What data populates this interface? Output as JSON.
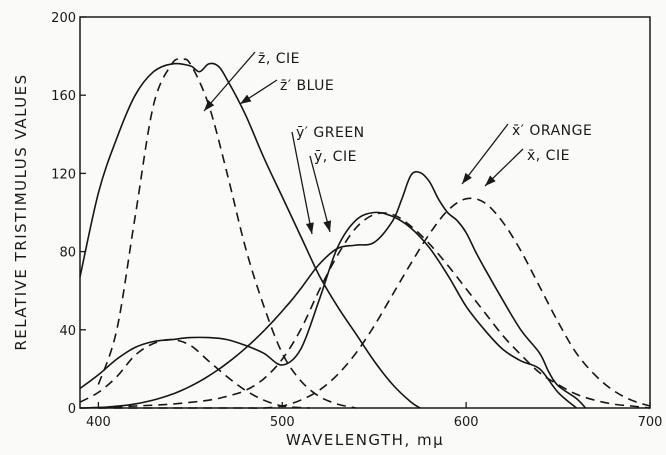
{
  "chart_data": {
    "type": "line",
    "title": "",
    "xlabel": "WAVELENGTH, mμ",
    "ylabel": "RELATIVE TRISTIMULUS VALUES",
    "xlim": [
      390,
      700
    ],
    "ylim": [
      0,
      200
    ],
    "xticks": [
      "400",
      "500",
      "600",
      "700"
    ],
    "yticks": [
      "0",
      "40",
      "80",
      "120",
      "160",
      "200"
    ],
    "grid": false,
    "legend": "none",
    "series": [
      {
        "name": "z̄, CIE",
        "style": "dashed",
        "x": [
          400,
          410,
          420,
          430,
          440,
          445,
          450,
          460,
          470,
          480,
          490,
          500,
          510,
          520,
          530,
          540
        ],
        "y": [
          12,
          40,
          98,
          155,
          176,
          178,
          176,
          155,
          120,
          82,
          52,
          28,
          14,
          6,
          2,
          0
        ]
      },
      {
        "name": "z̄′ BLUE",
        "style": "solid",
        "x": [
          390,
          400,
          410,
          420,
          430,
          440,
          450,
          455,
          460,
          465,
          470,
          480,
          490,
          500,
          510,
          520,
          530,
          540,
          550,
          560,
          570,
          575
        ],
        "y": [
          67,
          110,
          138,
          160,
          172,
          176,
          175,
          172,
          176,
          175,
          168,
          150,
          128,
          108,
          88,
          68,
          52,
          38,
          24,
          12,
          3,
          0
        ]
      },
      {
        "name": "ȳ′ GREEN",
        "style": "solid",
        "x": [
          390,
          400,
          410,
          420,
          430,
          440,
          450,
          460,
          470,
          480,
          490,
          500,
          510,
          520,
          530,
          540,
          550,
          560,
          570,
          580,
          590,
          600,
          610,
          620,
          630,
          640,
          650,
          660
        ],
        "y": [
          10,
          17,
          25,
          31,
          34,
          35,
          36,
          36,
          35,
          32,
          28,
          22,
          30,
          55,
          82,
          96,
          100,
          98,
          92,
          82,
          68,
          52,
          40,
          30,
          24,
          20,
          8,
          0
        ]
      },
      {
        "name": "ȳ, CIE",
        "style": "dashed",
        "x": [
          400,
          420,
          440,
          460,
          470,
          480,
          490,
          500,
          510,
          520,
          530,
          540,
          550,
          560,
          570,
          580,
          590,
          600,
          610,
          620,
          630,
          640,
          650,
          660,
          670,
          680,
          690,
          700
        ],
        "y": [
          0,
          1,
          2,
          4,
          6,
          9,
          15,
          25,
          40,
          60,
          78,
          92,
          99,
          99,
          93,
          84,
          73,
          61,
          49,
          37,
          27,
          18,
          12,
          7,
          4,
          2,
          1,
          0
        ]
      },
      {
        "name": "x̄′ ORANGE",
        "style": "solid",
        "x": [
          385,
          390,
          395,
          400,
          405,
          410,
          415,
          420,
          425,
          430,
          435,
          440,
          445,
          450,
          455,
          460,
          465,
          470,
          475,
          480,
          485,
          490,
          495,
          500,
          505,
          510,
          520,
          530,
          540,
          550,
          560,
          565,
          570,
          575,
          580,
          585,
          590,
          595,
          600,
          605,
          610,
          620,
          630,
          640,
          645,
          650,
          660,
          665
        ],
        "y": [
          0,
          0,
          0.1,
          0.3,
          0.5,
          0.9,
          1.4,
          2.1,
          3.0,
          4.1,
          5.4,
          7.0,
          8.9,
          11.1,
          13.6,
          16.4,
          19.5,
          22.9,
          26.6,
          30.6,
          34.9,
          39.5,
          44.4,
          49.6,
          55.1,
          60.9,
          73.4,
          81.6,
          83.3,
          84.7,
          95.7,
          106.8,
          119.1,
          120.4,
          115.8,
          106.8,
          99.9,
          96.0,
          89.7,
          80.2,
          71.5,
          55.1,
          39.6,
          28.0,
          18.3,
          11.4,
          4.8,
          0
        ]
      },
      {
        "name": "x̄, CIE",
        "style": "dashed",
        "x": [
          400,
          420,
          440,
          460,
          480,
          490,
          500,
          510,
          520,
          530,
          540,
          550,
          560,
          570,
          580,
          590,
          600,
          610,
          620,
          630,
          640,
          650,
          660,
          670,
          680,
          690,
          700
        ],
        "y": [
          0,
          0,
          0,
          0,
          0,
          0,
          1,
          4,
          9,
          17,
          28,
          42,
          58,
          74,
          89,
          101,
          107,
          105,
          95,
          80,
          62,
          44,
          28,
          17,
          9,
          4,
          1
        ]
      },
      {
        "name": "",
        "style": "dashed",
        "x": [
          390,
          400,
          410,
          420,
          430,
          440,
          450,
          460,
          470,
          480,
          490,
          500,
          510,
          515
        ],
        "y": [
          3,
          8,
          16,
          27,
          33,
          35,
          32,
          24,
          16,
          9,
          4,
          1,
          0.2,
          0
        ]
      }
    ]
  },
  "labels": {
    "zbar_cie": "z̄, CIE",
    "zbar_blue": "z̄′ BLUE",
    "ybar_green": "ȳ′ GREEN",
    "ybar_cie": "ȳ, CIE",
    "xbar_orange": "x̄′ ORANGE",
    "xbar_cie": "x̄, CIE"
  }
}
